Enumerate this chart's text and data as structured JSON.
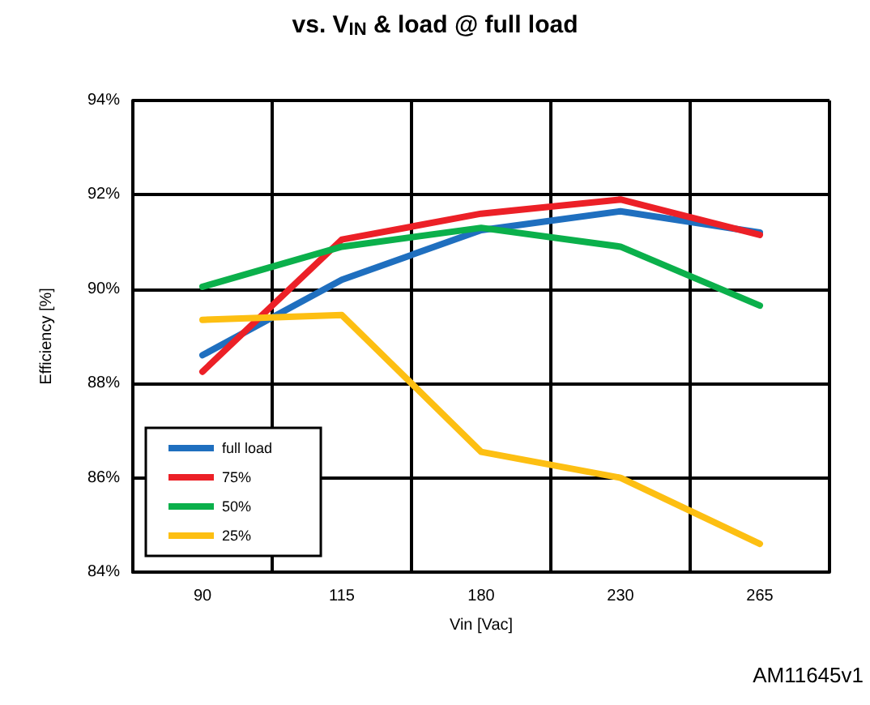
{
  "chart_data": {
    "type": "line",
    "title": "vs. V$_{IN}$ & load @ full load",
    "xlabel": "Vin [Vac]",
    "ylabel": "Efficiency [%]",
    "categories": [
      "90",
      "115",
      "180",
      "230",
      "265"
    ],
    "series": [
      {
        "name": "full load",
        "color": "#1f6fbf",
        "values": [
          88.6,
          90.2,
          91.25,
          91.65,
          91.2
        ]
      },
      {
        "name": "75%",
        "color": "#ec2027",
        "values": [
          88.25,
          91.05,
          91.6,
          91.9,
          91.15
        ]
      },
      {
        "name": "50%",
        "color": "#0bb04b",
        "values": [
          90.05,
          90.9,
          91.3,
          90.9,
          89.65
        ]
      },
      {
        "name": "25%",
        "color": "#fdbf12",
        "values": [
          89.35,
          89.45,
          86.55,
          86.0,
          84.6
        ]
      }
    ],
    "ylim": [
      84,
      94
    ],
    "yticks": [
      {
        "value": 84,
        "label": "84%"
      },
      {
        "value": 86,
        "label": "86%"
      },
      {
        "value": 88,
        "label": "88%"
      },
      {
        "value": 90,
        "label": "90%"
      },
      {
        "value": 92,
        "label": "92%"
      },
      {
        "value": 94,
        "label": "94%"
      }
    ],
    "grid": true,
    "legend": "bottom left",
    "marker": "none",
    "line_style": "solid",
    "annotations": [
      "AM11645v1"
    ]
  }
}
